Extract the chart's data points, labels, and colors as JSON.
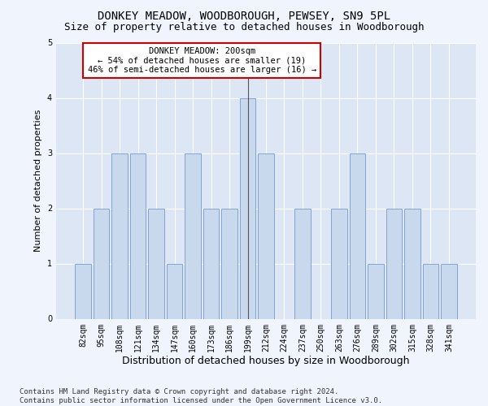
{
  "title": "DONKEY MEADOW, WOODBOROUGH, PEWSEY, SN9 5PL",
  "subtitle": "Size of property relative to detached houses in Woodborough",
  "xlabel": "Distribution of detached houses by size in Woodborough",
  "ylabel": "Number of detached properties",
  "categories": [
    "82sqm",
    "95sqm",
    "108sqm",
    "121sqm",
    "134sqm",
    "147sqm",
    "160sqm",
    "173sqm",
    "186sqm",
    "199sqm",
    "212sqm",
    "224sqm",
    "237sqm",
    "250sqm",
    "263sqm",
    "276sqm",
    "289sqm",
    "302sqm",
    "315sqm",
    "328sqm",
    "341sqm"
  ],
  "values": [
    1,
    2,
    3,
    3,
    2,
    1,
    3,
    2,
    2,
    4,
    3,
    0,
    2,
    0,
    2,
    3,
    1,
    2,
    2,
    1,
    1
  ],
  "highlight_index": 9,
  "highlight_line_color": "#555555",
  "bar_color": "#c8d8ed",
  "bar_edge_color": "#7799cc",
  "annotation_text": "DONKEY MEADOW: 200sqm\n← 54% of detached houses are smaller (19)\n46% of semi-detached houses are larger (16) →",
  "annotation_box_color": "#ffffff",
  "annotation_box_edge_color": "#cc0000",
  "ylim": [
    0,
    5
  ],
  "yticks": [
    0,
    1,
    2,
    3,
    4,
    5
  ],
  "plot_bg_color": "#dce6f5",
  "fig_bg_color": "#f0f4fc",
  "footer_text": "Contains HM Land Registry data © Crown copyright and database right 2024.\nContains public sector information licensed under the Open Government Licence v3.0.",
  "title_fontsize": 10,
  "subtitle_fontsize": 9,
  "xlabel_fontsize": 9,
  "ylabel_fontsize": 8,
  "tick_fontsize": 7,
  "annotation_fontsize": 7.5,
  "footer_fontsize": 6.5
}
